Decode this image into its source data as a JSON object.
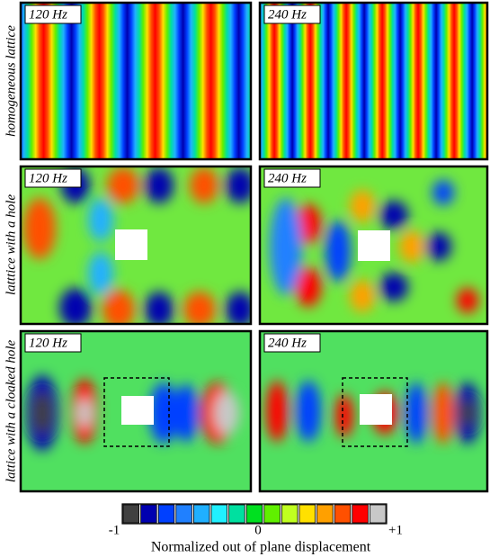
{
  "panels": [
    {
      "label": "120 Hz"
    },
    {
      "label": "240 Hz"
    },
    {
      "label": "120 Hz"
    },
    {
      "label": "240 Hz"
    },
    {
      "label": "120 Hz"
    },
    {
      "label": "240 Hz"
    }
  ],
  "rows": [
    "homogeneous lattice",
    "latttice with a hole",
    "lattice with a cloaked hole"
  ],
  "colorbar": {
    "colors": [
      "#404040",
      "#0000b0",
      "#0040ff",
      "#2080ff",
      "#20b0ff",
      "#20f0ff",
      "#00e0a0",
      "#00e020",
      "#60f000",
      "#c0ff20",
      "#ffe000",
      "#ffa000",
      "#ff5000",
      "#ff0000",
      "#c8c8c8"
    ],
    "ticks": [
      "-1",
      "0",
      "+1"
    ],
    "label": "Normalized out of plane displacement"
  }
}
